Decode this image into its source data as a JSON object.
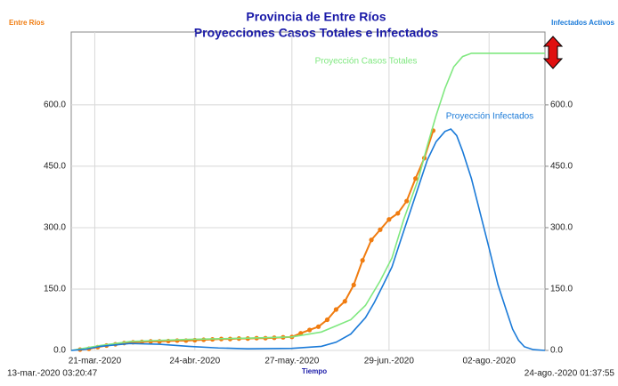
{
  "chart_data": {
    "type": "line",
    "title": "Provincia de Entre Ríos",
    "subtitle": "Proyecciones Casos Totales e Infectados",
    "xlabel": "Tiempo",
    "y2label": "Infectados Activos",
    "start_label": "13-mar.-2020 03:20:47",
    "end_label": "24-ago.-2020 01:37:55",
    "xlim": [
      0,
      161
    ],
    "xticks": [
      {
        "value": 8,
        "label": "21-mar.-2020"
      },
      {
        "value": 42,
        "label": "24-abr.-2020"
      },
      {
        "value": 75,
        "label": "27-may.-2020"
      },
      {
        "value": 108,
        "label": "29-jun.-2020"
      },
      {
        "value": 142,
        "label": "02-ago.-2020"
      }
    ],
    "ylim": [
      0,
      778
    ],
    "yticks": [
      {
        "value": 0,
        "label": "0.0"
      },
      {
        "value": 150,
        "label": "150.0"
      },
      {
        "value": 300,
        "label": "300.0"
      },
      {
        "value": 450,
        "label": "450.0"
      },
      {
        "value": 600,
        "label": "600.0"
      }
    ],
    "y2lim": [
      0,
      778
    ],
    "y2ticks": [
      {
        "value": 0,
        "label": "0.0"
      },
      {
        "value": 150,
        "label": "150.0"
      },
      {
        "value": 300,
        "label": "300.0"
      },
      {
        "value": 450,
        "label": "450.0"
      },
      {
        "value": 600,
        "label": "600.0"
      }
    ],
    "grid": true,
    "series": [
      {
        "name": "Entre Ríos",
        "color": "#f07c10",
        "markers": true,
        "x": [
          3,
          6,
          9,
          12,
          15,
          18,
          21,
          24,
          27,
          30,
          33,
          36,
          39,
          42,
          45,
          48,
          51,
          54,
          57,
          60,
          63,
          66,
          69,
          72,
          75,
          78,
          81,
          84,
          87,
          90,
          93,
          96,
          99,
          102,
          105,
          108,
          111,
          114,
          117,
          120,
          123
        ],
        "values": [
          2,
          4,
          8,
          12,
          15,
          18,
          20,
          21,
          22,
          22,
          23,
          24,
          24,
          25,
          26,
          27,
          28,
          28,
          29,
          29,
          30,
          30,
          31,
          32,
          33,
          42,
          50,
          58,
          75,
          100,
          120,
          160,
          220,
          270,
          295,
          320,
          335,
          365,
          420,
          470,
          537
        ]
      },
      {
        "name": "Proyección Casos Totales",
        "color": "#80e880",
        "markers": false,
        "x": [
          0,
          10,
          20,
          40,
          60,
          75,
          85,
          95,
          100,
          105,
          109,
          113,
          118,
          121,
          124,
          127,
          130,
          133,
          136,
          139,
          145,
          161
        ],
        "values": [
          0,
          12,
          22,
          27,
          30,
          33,
          45,
          75,
          110,
          170,
          226,
          320,
          420,
          500,
          574,
          640,
          693,
          718,
          726,
          726,
          726,
          726
        ]
      },
      {
        "name": "Proyección Infectados",
        "color": "#1a7ad8",
        "markers": false,
        "axis": "y2",
        "x": [
          0,
          5,
          10,
          20,
          30,
          40,
          50,
          60,
          75,
          85,
          90,
          95,
          100,
          103,
          106,
          109,
          112,
          115,
          118,
          121,
          124,
          127,
          129,
          131,
          133,
          136,
          139,
          142,
          145,
          148,
          150,
          152,
          154,
          157,
          161
        ],
        "values": [
          0,
          3,
          10,
          17,
          15,
          10,
          6,
          4,
          5,
          10,
          20,
          40,
          80,
          117,
          160,
          204,
          270,
          335,
          400,
          465,
          510,
          535,
          541,
          525,
          487,
          420,
          335,
          250,
          161,
          95,
          52,
          25,
          9,
          2,
          0
        ]
      }
    ]
  }
}
